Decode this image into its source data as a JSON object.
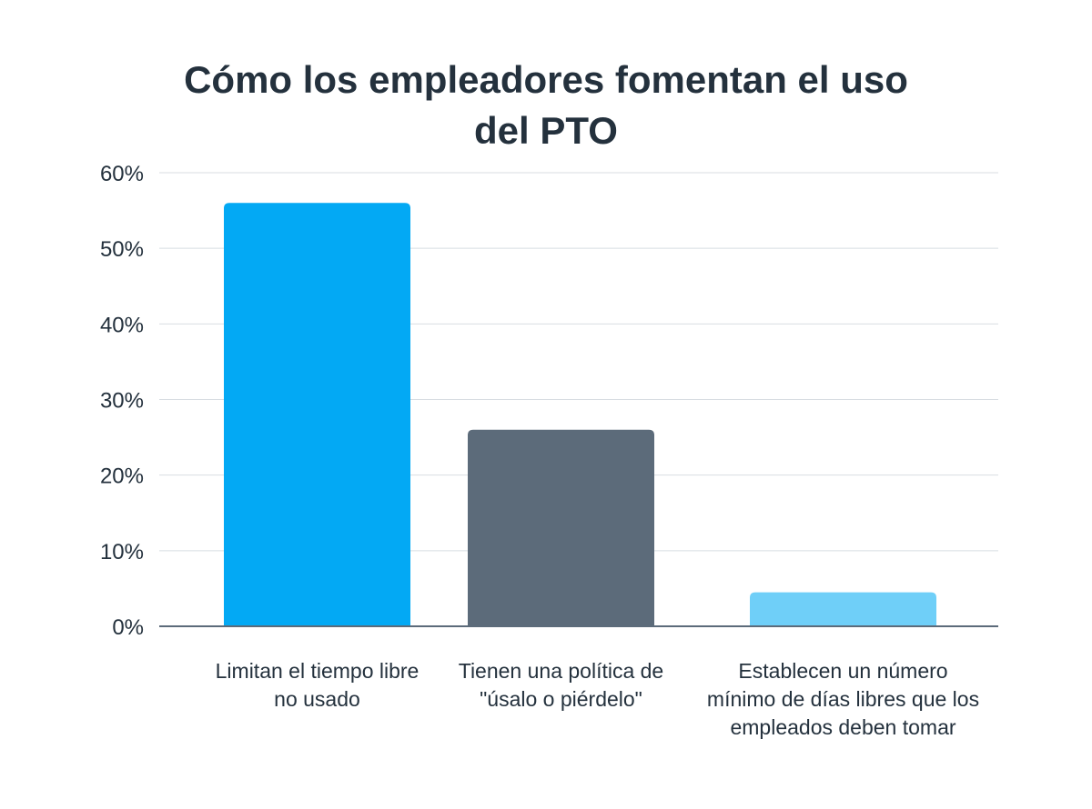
{
  "chart_data": {
    "type": "bar",
    "title_lines": [
      "Cómo los empleadores fomentan el uso",
      "del PTO"
    ],
    "categories": [
      "Limitan el tiempo libre no usado",
      "Tienen una política de \"úsalo o piérdelo\"",
      "Establecen un número mínimo de días libres que los empleados deben tomar"
    ],
    "values": [
      56,
      26,
      4.5
    ],
    "bar_colors": [
      "#03a9f4",
      "#5c6b7a",
      "#6fcff8"
    ],
    "ylim": [
      0,
      60
    ],
    "yticks": [
      0,
      10,
      20,
      30,
      40,
      50,
      60
    ],
    "ytick_labels": [
      "0%",
      "10%",
      "20%",
      "30%",
      "40%",
      "50%",
      "60%"
    ],
    "xlabel": "",
    "ylabel": "",
    "grid": true,
    "legend": "none",
    "colors": {
      "grid": "#d8dde2",
      "axis": "#5c6b7a",
      "text": "#24313d"
    }
  }
}
